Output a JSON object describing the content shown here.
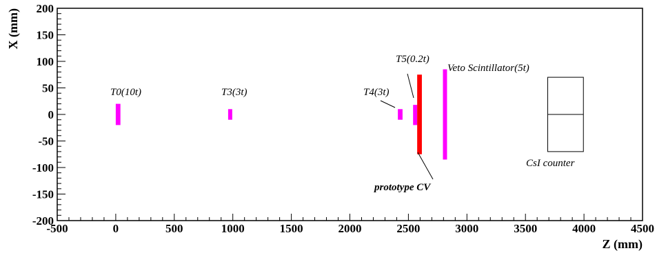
{
  "plot": {
    "x_axis": {
      "title": "Z (mm)",
      "range": [
        -500,
        4500
      ],
      "major_ticks": [
        -500,
        0,
        500,
        1000,
        1500,
        2000,
        2500,
        3000,
        3500,
        4000,
        4500
      ],
      "minor_step": 100
    },
    "y_axis": {
      "title": "X (mm)",
      "range": [
        -200,
        200
      ],
      "major_ticks": [
        -200,
        -150,
        -100,
        -50,
        0,
        50,
        100,
        150,
        200
      ],
      "minor_step": 10
    },
    "colors": {
      "counter": "#ff00ff",
      "prototype_cv": "#ff0000",
      "outline": "#000000"
    },
    "detectors": [
      {
        "label": "T0(10t)",
        "z_min": 0,
        "z_max": 40,
        "x_min": -20,
        "x_max": 20,
        "color": "#ff00ff"
      },
      {
        "label": "T3(3t)",
        "z_min": 960,
        "z_max": 995,
        "x_min": -10,
        "x_max": 10,
        "color": "#ff00ff"
      },
      {
        "label": "T4(3t)",
        "z_min": 2410,
        "z_max": 2450,
        "x_min": -10,
        "x_max": 10,
        "color": "#ff00ff"
      },
      {
        "label": "T5(0.2t)",
        "z_min": 2540,
        "z_max": 2575,
        "x_min": -20,
        "x_max": 18,
        "color": "#ff00ff"
      },
      {
        "label": "prototype CV",
        "z_min": 2575,
        "z_max": 2615,
        "x_min": -75,
        "x_max": 75,
        "color": "#ff0000"
      },
      {
        "label": "Veto Scintillator(5t)",
        "z_min": 2795,
        "z_max": 2830,
        "x_min": -85,
        "x_max": 85,
        "color": "#ff00ff"
      }
    ],
    "csi_counter": {
      "label": "CsI counter",
      "z_min": 3690,
      "z_max": 3995,
      "x_min": -70,
      "x_max": 70,
      "divider_x": 0
    }
  }
}
